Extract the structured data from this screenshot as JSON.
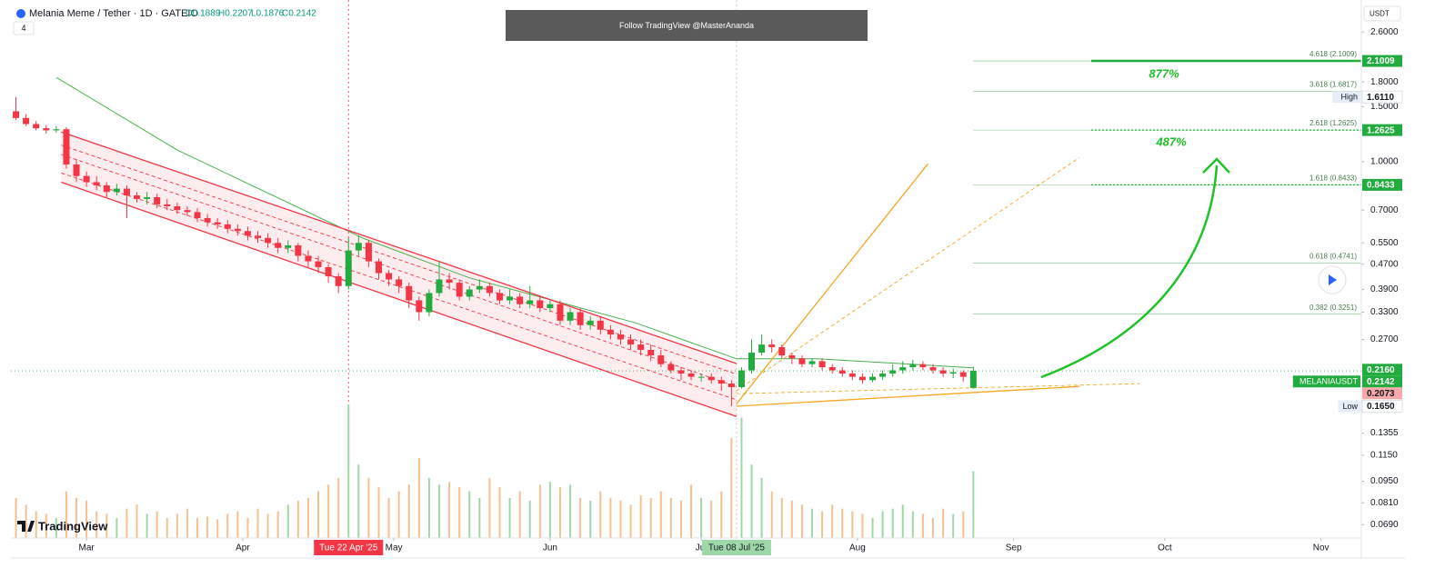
{
  "header": {
    "symbol": "Melania Meme / Tether · 1D · GATEIO",
    "open": "O0.1889",
    "high": "H0.2207",
    "low": "L0.1876",
    "close": "C0.2142",
    "indicators": "4"
  },
  "banner": "Follow TradingView @MasterAnanda",
  "currency": "USDT",
  "logo": "TradingView",
  "chart_data": {
    "type": "candlestick",
    "log_scale": true,
    "grid": false,
    "x": [
      "2025-02-15",
      "2025-02-17",
      "2025-02-19",
      "2025-02-21",
      "2025-02-23",
      "2025-02-25",
      "2025-02-27",
      "2025-03-01",
      "2025-03-03",
      "2025-03-05",
      "2025-03-07",
      "2025-03-09",
      "2025-03-11",
      "2025-03-13",
      "2025-03-15",
      "2025-03-17",
      "2025-03-19",
      "2025-03-21",
      "2025-03-23",
      "2025-03-25",
      "2025-03-27",
      "2025-03-29",
      "2025-03-31",
      "2025-04-02",
      "2025-04-04",
      "2025-04-06",
      "2025-04-08",
      "2025-04-10",
      "2025-04-12",
      "2025-04-14",
      "2025-04-16",
      "2025-04-18",
      "2025-04-20",
      "2025-04-22",
      "2025-04-24",
      "2025-04-26",
      "2025-04-28",
      "2025-04-30",
      "2025-05-02",
      "2025-05-04",
      "2025-05-06",
      "2025-05-08",
      "2025-05-10",
      "2025-05-12",
      "2025-05-14",
      "2025-05-16",
      "2025-05-18",
      "2025-05-20",
      "2025-05-22",
      "2025-05-24",
      "2025-05-26",
      "2025-05-28",
      "2025-05-30",
      "2025-06-01",
      "2025-06-03",
      "2025-06-05",
      "2025-06-07",
      "2025-06-09",
      "2025-06-11",
      "2025-06-13",
      "2025-06-15",
      "2025-06-17",
      "2025-06-19",
      "2025-06-21",
      "2025-06-23",
      "2025-06-25",
      "2025-06-27",
      "2025-06-29",
      "2025-07-01",
      "2025-07-03",
      "2025-07-05",
      "2025-07-07",
      "2025-07-09",
      "2025-07-11",
      "2025-07-13",
      "2025-07-15",
      "2025-07-17",
      "2025-07-19",
      "2025-07-21",
      "2025-07-23",
      "2025-07-25",
      "2025-07-27",
      "2025-07-29",
      "2025-07-31",
      "2025-08-02",
      "2025-08-04",
      "2025-08-06",
      "2025-08-08",
      "2025-08-10",
      "2025-08-12",
      "2025-08-14",
      "2025-08-16",
      "2025-08-18",
      "2025-08-20",
      "2025-08-22",
      "2025-08-24"
    ],
    "open": [
      1.45,
      1.38,
      1.32,
      1.28,
      1.26,
      1.27,
      0.98,
      0.9,
      0.86,
      0.84,
      0.8,
      0.82,
      0.78,
      0.76,
      0.77,
      0.73,
      0.72,
      0.7,
      0.69,
      0.66,
      0.64,
      0.63,
      0.61,
      0.6,
      0.58,
      0.57,
      0.55,
      0.53,
      0.54,
      0.5,
      0.48,
      0.46,
      0.43,
      0.4,
      0.52,
      0.55,
      0.48,
      0.44,
      0.42,
      0.4,
      0.36,
      0.33,
      0.38,
      0.42,
      0.41,
      0.37,
      0.39,
      0.4,
      0.38,
      0.36,
      0.37,
      0.35,
      0.36,
      0.34,
      0.35,
      0.31,
      0.33,
      0.3,
      0.31,
      0.29,
      0.28,
      0.27,
      0.26,
      0.25,
      0.24,
      0.225,
      0.215,
      0.21,
      0.205,
      0.205,
      0.2,
      0.195,
      0.19,
      0.215,
      0.245,
      0.26,
      0.255,
      0.24,
      0.235,
      0.225,
      0.23,
      0.22,
      0.215,
      0.21,
      0.205,
      0.2,
      0.205,
      0.21,
      0.215,
      0.22,
      0.225,
      0.22,
      0.215,
      0.21,
      0.212,
      0.1889
    ],
    "high": [
      1.611,
      1.42,
      1.35,
      1.31,
      1.3,
      1.29,
      1.02,
      0.93,
      0.9,
      0.86,
      0.85,
      0.84,
      0.8,
      0.8,
      0.79,
      0.76,
      0.74,
      0.72,
      0.71,
      0.68,
      0.66,
      0.65,
      0.63,
      0.62,
      0.6,
      0.59,
      0.57,
      0.56,
      0.55,
      0.52,
      0.5,
      0.47,
      0.44,
      0.57,
      0.58,
      0.56,
      0.49,
      0.45,
      0.43,
      0.41,
      0.37,
      0.39,
      0.48,
      0.44,
      0.42,
      0.4,
      0.42,
      0.41,
      0.39,
      0.39,
      0.38,
      0.4,
      0.37,
      0.36,
      0.36,
      0.34,
      0.34,
      0.32,
      0.32,
      0.3,
      0.29,
      0.28,
      0.27,
      0.26,
      0.25,
      0.23,
      0.22,
      0.215,
      0.21,
      0.21,
      0.205,
      0.2,
      0.22,
      0.27,
      0.28,
      0.27,
      0.26,
      0.245,
      0.24,
      0.235,
      0.235,
      0.225,
      0.22,
      0.215,
      0.21,
      0.21,
      0.215,
      0.225,
      0.23,
      0.232,
      0.23,
      0.225,
      0.22,
      0.218,
      0.215,
      0.2207
    ],
    "low": [
      1.36,
      1.3,
      1.26,
      1.23,
      1.24,
      0.95,
      0.86,
      0.83,
      0.81,
      0.77,
      0.78,
      0.66,
      0.74,
      0.73,
      0.71,
      0.7,
      0.68,
      0.67,
      0.64,
      0.62,
      0.61,
      0.59,
      0.58,
      0.56,
      0.55,
      0.53,
      0.51,
      0.51,
      0.48,
      0.46,
      0.44,
      0.41,
      0.38,
      0.39,
      0.5,
      0.46,
      0.42,
      0.4,
      0.38,
      0.34,
      0.31,
      0.32,
      0.37,
      0.39,
      0.36,
      0.36,
      0.38,
      0.37,
      0.35,
      0.35,
      0.34,
      0.34,
      0.33,
      0.33,
      0.3,
      0.3,
      0.29,
      0.29,
      0.28,
      0.27,
      0.26,
      0.25,
      0.24,
      0.23,
      0.22,
      0.21,
      0.2,
      0.2,
      0.198,
      0.195,
      0.185,
      0.165,
      0.188,
      0.21,
      0.24,
      0.245,
      0.235,
      0.225,
      0.22,
      0.22,
      0.215,
      0.21,
      0.205,
      0.2,
      0.195,
      0.197,
      0.2,
      0.205,
      0.21,
      0.215,
      0.215,
      0.21,
      0.205,
      0.203,
      0.198,
      0.1876
    ],
    "close": [
      1.38,
      1.32,
      1.28,
      1.26,
      1.27,
      0.98,
      0.9,
      0.86,
      0.84,
      0.8,
      0.82,
      0.78,
      0.76,
      0.77,
      0.73,
      0.72,
      0.7,
      0.69,
      0.66,
      0.64,
      0.63,
      0.61,
      0.6,
      0.58,
      0.57,
      0.55,
      0.53,
      0.54,
      0.5,
      0.48,
      0.46,
      0.43,
      0.4,
      0.52,
      0.55,
      0.48,
      0.44,
      0.42,
      0.4,
      0.36,
      0.33,
      0.38,
      0.42,
      0.41,
      0.37,
      0.39,
      0.4,
      0.38,
      0.36,
      0.37,
      0.35,
      0.36,
      0.34,
      0.35,
      0.31,
      0.33,
      0.3,
      0.31,
      0.29,
      0.28,
      0.27,
      0.26,
      0.25,
      0.24,
      0.225,
      0.215,
      0.21,
      0.205,
      0.205,
      0.2,
      0.195,
      0.19,
      0.215,
      0.245,
      0.26,
      0.255,
      0.24,
      0.235,
      0.225,
      0.23,
      0.22,
      0.215,
      0.21,
      0.205,
      0.2,
      0.205,
      0.21,
      0.215,
      0.22,
      0.225,
      0.22,
      0.215,
      0.21,
      0.212,
      0.205,
      0.2142
    ],
    "volume": [
      30,
      25,
      20,
      18,
      15,
      35,
      30,
      28,
      20,
      18,
      15,
      22,
      25,
      18,
      20,
      15,
      18,
      22,
      15,
      16,
      14,
      18,
      20,
      15,
      22,
      18,
      20,
      25,
      28,
      30,
      35,
      40,
      45,
      100,
      55,
      45,
      38,
      30,
      35,
      40,
      60,
      45,
      40,
      42,
      38,
      35,
      30,
      45,
      38,
      30,
      35,
      28,
      40,
      42,
      38,
      40,
      30,
      28,
      35,
      30,
      28,
      25,
      32,
      30,
      35,
      30,
      28,
      40,
      30,
      28,
      35,
      75,
      90,
      55,
      45,
      35,
      30,
      28,
      25,
      22,
      20,
      25,
      22,
      20,
      18,
      15,
      20,
      22,
      25,
      20,
      18,
      15,
      22,
      18,
      20,
      50
    ],
    "up_color": "#22ab3e",
    "down_color": "#f23645",
    "volume_up_color": "#9fd8a8",
    "volume_down_color": "#f9c08f",
    "xlim": [
      "2025-02-14",
      "2025-11-09"
    ],
    "xticks": [
      {
        "value": "2025-03-01",
        "label": "Mar"
      },
      {
        "value": "2025-04-01",
        "label": "Apr"
      },
      {
        "value": "2025-05-01",
        "label": "May"
      },
      {
        "value": "2025-06-01",
        "label": "Jun"
      },
      {
        "value": "2025-07-01",
        "label": "Jul"
      },
      {
        "value": "2025-08-01",
        "label": "Aug"
      },
      {
        "value": "2025-09-01",
        "label": "Sep"
      },
      {
        "value": "2025-10-01",
        "label": "Oct"
      },
      {
        "value": "2025-11-01",
        "label": "Nov"
      }
    ],
    "ylim": [
      0.0625,
      3.12
    ],
    "yticks": [
      {
        "value": 2.6,
        "label": "2.6000"
      },
      {
        "value": 1.8,
        "label": "1.8000"
      },
      {
        "value": 1.5,
        "label": "1.5000"
      },
      {
        "value": 1,
        "label": "1.0000"
      },
      {
        "value": 0.7,
        "label": "0.7000"
      },
      {
        "value": 0.55,
        "label": "0.5500"
      },
      {
        "value": 0.47,
        "label": "0.4700"
      },
      {
        "value": 0.39,
        "label": "0.3900"
      },
      {
        "value": 0.33,
        "label": "0.3300"
      },
      {
        "value": 0.27,
        "label": "0.2700"
      },
      {
        "value": 0.1355,
        "label": "0.1355"
      },
      {
        "value": 0.115,
        "label": "0.1150"
      },
      {
        "value": 0.095,
        "label": "0.0950"
      },
      {
        "value": 0.081,
        "label": "0.0810"
      },
      {
        "value": 0.069,
        "label": "0.0690"
      }
    ],
    "price_labels": [
      {
        "value": 2.1009,
        "label": "2.1009",
        "color": "#22ab3e"
      },
      {
        "value": 1.611,
        "label": "1.6110",
        "tag": "High",
        "color": "#ffffff"
      },
      {
        "value": 1.2625,
        "label": "1.2625",
        "color": "#22ab3e"
      },
      {
        "value": 0.8433,
        "label": "0.8433",
        "color": "#22ab3e"
      },
      {
        "value": 0.216,
        "label": "0.2160",
        "color": "#22ab3e"
      },
      {
        "value": 0.2142,
        "label": "0.2142",
        "tag": "MELANIAUSDT",
        "color": "#22ab3e"
      },
      {
        "value": 0.2073,
        "label": "0.2073",
        "color": "#f7a9a9"
      },
      {
        "value": 0.165,
        "label": "0.1650",
        "tag": "Low",
        "color": "#ffffff"
      }
    ],
    "fib_color": "#4caf50",
    "fib_levels": [
      {
        "value": 2.1009,
        "label": "4.618 (2.1009)"
      },
      {
        "value": 1.6817,
        "label": "3.618 (1.6817)"
      },
      {
        "value": 1.2625,
        "label": "2.618 (1.2625)"
      },
      {
        "value": 0.8433,
        "label": "1.618 (0.8433)"
      },
      {
        "value": 0.4741,
        "label": "0.618 (0.4741)"
      },
      {
        "value": 0.3251,
        "label": "0.382 (0.3251)"
      }
    ],
    "targets": [
      {
        "value": 2.1009,
        "dashed": false
      },
      {
        "value": 1.2625,
        "dashed": true
      },
      {
        "value": 0.8433,
        "dashed": true
      }
    ],
    "annotations": [
      "877%",
      "487%"
    ],
    "ma": {
      "color": "#4caf50",
      "x": [
        "2025-02-23",
        "2025-03-19",
        "2025-04-25",
        "2025-05-16",
        "2025-06-18",
        "2025-07-08",
        "2025-07-24",
        "2025-08-24"
      ],
      "values": [
        1.86,
        1.09,
        0.568,
        0.425,
        0.305,
        0.234,
        0.234,
        0.219
      ]
    },
    "trendlines": [
      {
        "color": "#f23645",
        "dashed": false,
        "x": [
          "2025-02-24",
          "2025-07-08"
        ],
        "values": [
          1.245,
          0.226
        ]
      },
      {
        "color": "#f23645",
        "dashed": false,
        "x": [
          "2025-02-24",
          "2025-07-08"
        ],
        "values": [
          0.86,
          0.153
        ]
      },
      {
        "color": "#f23645",
        "dashed": true,
        "x": [
          "2025-02-24",
          "2025-07-08"
        ],
        "values": [
          1.13,
          0.209
        ]
      },
      {
        "color": "#f23645",
        "dashed": true,
        "x": [
          "2025-02-24",
          "2025-07-08"
        ],
        "values": [
          1.055,
          0.191
        ]
      },
      {
        "color": "#f23645",
        "dashed": true,
        "x": [
          "2025-02-24",
          "2025-07-08"
        ],
        "values": [
          0.92,
          0.173
        ]
      },
      {
        "color": "#f5a623",
        "dashed": false,
        "x": [
          "2025-07-08",
          "2025-08-15"
        ],
        "values": [
          0.168,
          0.985
        ]
      },
      {
        "color": "#f5a623",
        "dashed": true,
        "x": [
          "2025-07-08",
          "2025-09-14"
        ],
        "values": [
          0.185,
          1.03
        ]
      },
      {
        "color": "#f5a623",
        "dashed": false,
        "x": [
          "2025-07-08",
          "2025-09-14"
        ],
        "values": [
          0.165,
          0.191
        ]
      },
      {
        "color": "#f5a623",
        "dashed": true,
        "x": [
          "2025-07-08",
          "2025-09-26"
        ],
        "values": [
          0.181,
          0.195
        ]
      }
    ],
    "time_markers": [
      {
        "date": "2025-04-22",
        "label": "Tue 22 Apr '25",
        "color": "#f23645",
        "text_color": "#ffffff"
      },
      {
        "date": "2025-07-08",
        "label": "Tue 08 Jul '25",
        "color": "#9fd8a8",
        "text_color": "#131722"
      }
    ]
  }
}
